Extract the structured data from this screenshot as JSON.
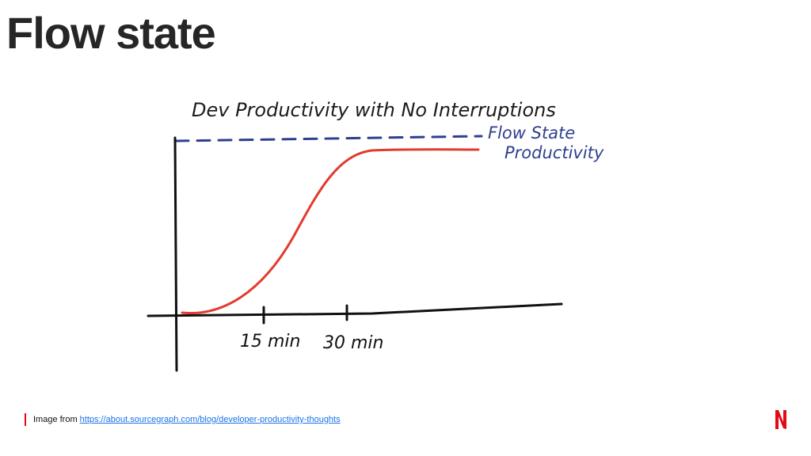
{
  "slide": {
    "title": "Flow state"
  },
  "diagram": {
    "title": "Dev Productivity with No Interruptions",
    "flow_label_line1": "Flow State",
    "flow_label_line2": "Productivity",
    "ticks": [
      "15 min",
      "30 min"
    ],
    "curve_color": "#e23b2e",
    "dashed_color": "#2f3f8f",
    "label_color": "#2f3f8f"
  },
  "footer": {
    "prefix": "Image from",
    "link_text": "https://about.sourcegraph.com/blog/developer-productivity-thoughts",
    "accent_color": "#e50914"
  },
  "brand": {
    "logo_letter": "N",
    "logo_color": "#e50914"
  }
}
